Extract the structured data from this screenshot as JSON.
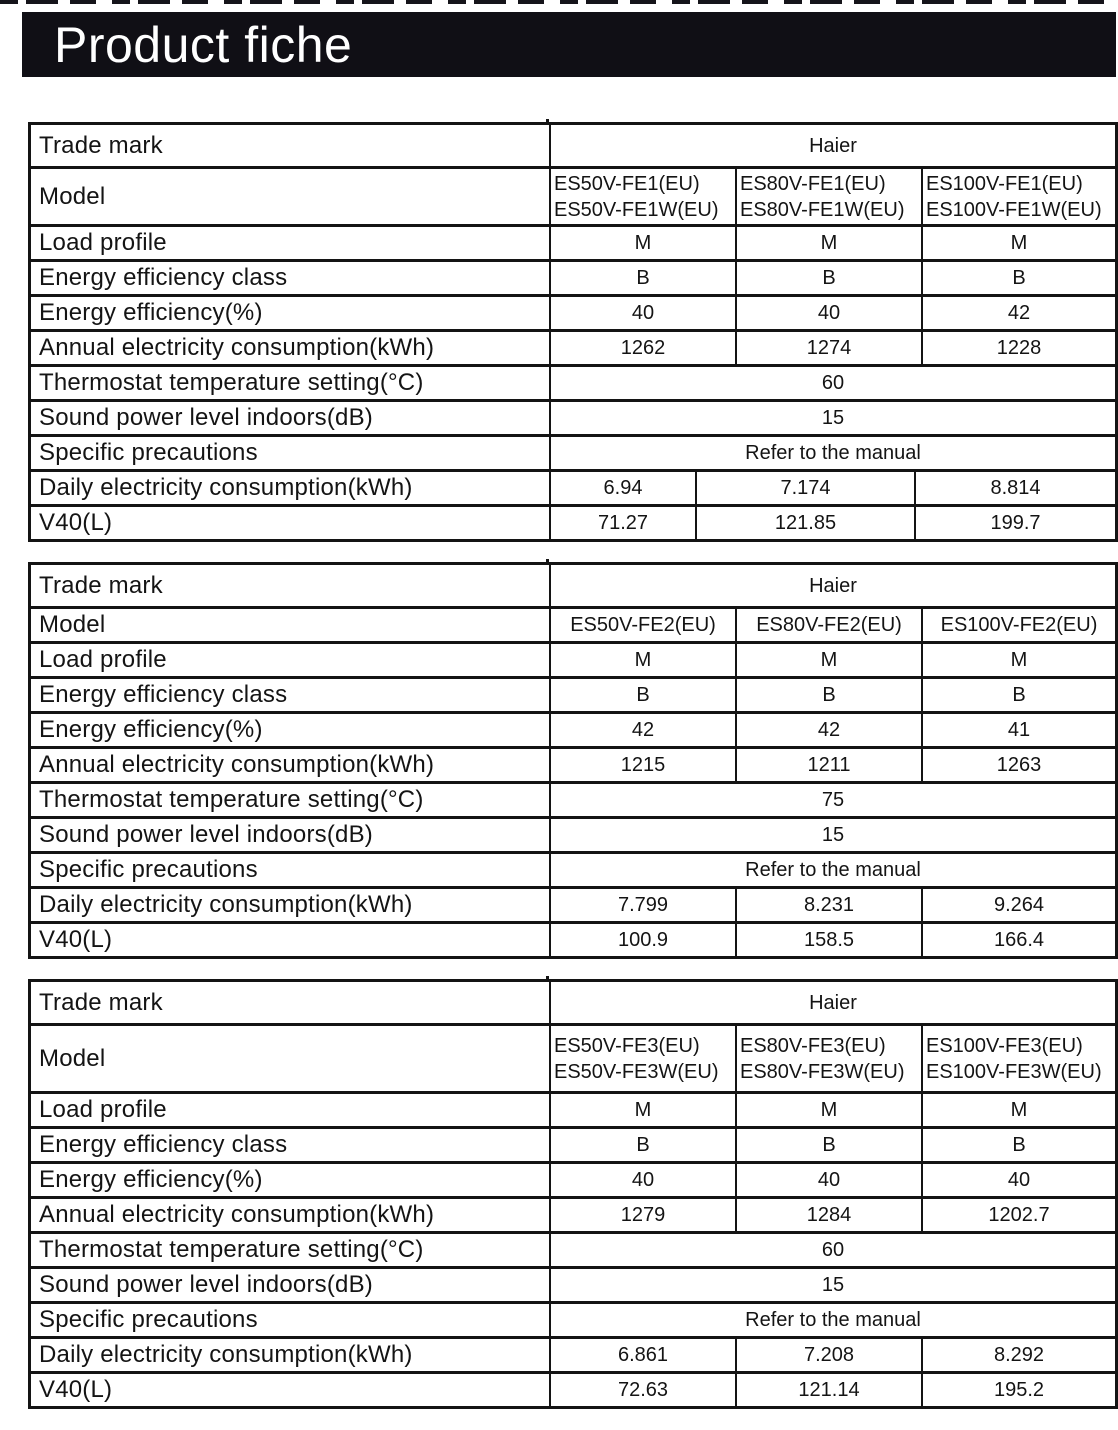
{
  "page_title": "Product fiche",
  "tables": [
    {
      "name": "fiche-group-fe1",
      "rows": [
        {
          "label": "Trade mark",
          "span": true,
          "values": [
            "Haier"
          ]
        },
        {
          "label": "Model",
          "span": false,
          "values": [
            "ES50V-FE1(EU)\nES50V-FE1W(EU)",
            "ES80V-FE1(EU)\nES80V-FE1W(EU)",
            "ES100V-FE1(EU)\nES100V-FE1W(EU)"
          ]
        },
        {
          "label": "Load profile",
          "span": false,
          "values": [
            "M",
            "M",
            "M"
          ]
        },
        {
          "label": "Energy efficiency class",
          "span": false,
          "values": [
            "B",
            "B",
            "B"
          ]
        },
        {
          "label": "Energy efficiency(%)",
          "span": false,
          "values": [
            "40",
            "40",
            "42"
          ]
        },
        {
          "label": "Annual electricity consumption(kWh)",
          "span": false,
          "values": [
            "1262",
            "1274",
            "1228"
          ]
        },
        {
          "label": "Thermostat temperature setting(°C)",
          "span": true,
          "values": [
            "60"
          ]
        },
        {
          "label": "Sound power level indoors(dB)",
          "span": true,
          "values": [
            "15"
          ]
        },
        {
          "label": "Specific precautions",
          "span": true,
          "values": [
            "Refer to the manual"
          ]
        },
        {
          "label": "Daily electricity consumption(kWh)",
          "span": false,
          "narrow": true,
          "values": [
            "6.94",
            "7.174",
            "8.814"
          ]
        },
        {
          "label": "V40(L)",
          "span": false,
          "narrow": true,
          "values": [
            "71.27",
            "121.85",
            "199.7"
          ]
        }
      ]
    },
    {
      "name": "fiche-group-fe2",
      "rows": [
        {
          "label": "Trade mark",
          "span": true,
          "values": [
            "Haier"
          ]
        },
        {
          "label": "Model",
          "span": false,
          "values": [
            "ES50V-FE2(EU)",
            "ES80V-FE2(EU)",
            "ES100V-FE2(EU)"
          ]
        },
        {
          "label": "Load profile",
          "span": false,
          "values": [
            "M",
            "M",
            "M"
          ]
        },
        {
          "label": "Energy efficiency class",
          "span": false,
          "values": [
            "B",
            "B",
            "B"
          ]
        },
        {
          "label": "Energy efficiency(%)",
          "span": false,
          "values": [
            "42",
            "42",
            "41"
          ]
        },
        {
          "label": "Annual electricity consumption(kWh)",
          "span": false,
          "values": [
            "1215",
            "1211",
            "1263"
          ]
        },
        {
          "label": "Thermostat temperature setting(°C)",
          "span": true,
          "values": [
            "75"
          ]
        },
        {
          "label": "Sound power level indoors(dB)",
          "span": true,
          "values": [
            "15"
          ]
        },
        {
          "label": "Specific precautions",
          "span": true,
          "values": [
            "Refer to the manual"
          ]
        },
        {
          "label": "Daily electricity consumption(kWh)",
          "span": false,
          "values": [
            "7.799",
            "8.231",
            "9.264"
          ]
        },
        {
          "label": "V40(L)",
          "span": false,
          "values": [
            "100.9",
            "158.5",
            "166.4"
          ]
        }
      ]
    },
    {
      "name": "fiche-group-fe3",
      "rows": [
        {
          "label": "Trade mark",
          "span": true,
          "values": [
            "Haier"
          ]
        },
        {
          "label": "Model",
          "span": false,
          "values": [
            "ES50V-FE3(EU)\nES50V-FE3W(EU)",
            "ES80V-FE3(EU)\nES80V-FE3W(EU)",
            "ES100V-FE3(EU)\nES100V-FE3W(EU)"
          ]
        },
        {
          "label": "Load profile",
          "span": false,
          "values": [
            "M",
            "M",
            "M"
          ]
        },
        {
          "label": "Energy efficiency class",
          "span": false,
          "values": [
            "B",
            "B",
            "B"
          ]
        },
        {
          "label": "Energy efficiency(%)",
          "span": false,
          "values": [
            "40",
            "40",
            "40"
          ]
        },
        {
          "label": "Annual electricity consumption(kWh)",
          "span": false,
          "values": [
            "1279",
            "1284",
            "1202.7"
          ]
        },
        {
          "label": "Thermostat temperature setting(°C)",
          "span": true,
          "values": [
            "60"
          ]
        },
        {
          "label": "Sound power level indoors(dB)",
          "span": true,
          "values": [
            "15"
          ]
        },
        {
          "label": "Specific precautions",
          "span": true,
          "values": [
            "Refer to the manual"
          ]
        },
        {
          "label": "Daily electricity consumption(kWh)",
          "span": false,
          "values": [
            "6.861",
            "7.208",
            "8.292"
          ]
        },
        {
          "label": "V40(L)",
          "span": false,
          "values": [
            "72.63",
            "121.14",
            "195.2"
          ]
        }
      ]
    }
  ]
}
